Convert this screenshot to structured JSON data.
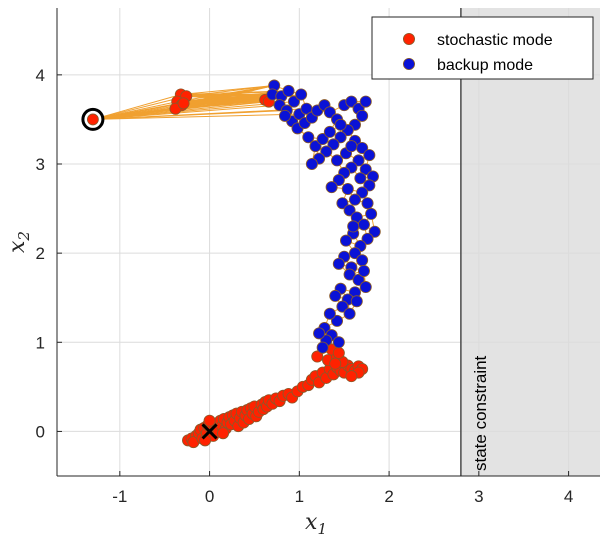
{
  "chart_data": {
    "type": "scatter",
    "title": "",
    "xlabel": "x",
    "xlabel_sub": "1",
    "ylabel": "x",
    "ylabel_sub": "2",
    "xlim": [
      -1.7,
      4.35
    ],
    "ylim": [
      -0.5,
      4.75
    ],
    "xticks": [
      -1,
      0,
      1,
      2,
      3,
      4
    ],
    "yticks": [
      0,
      1,
      2,
      3,
      4
    ],
    "grid": true,
    "legend_position": "top-right",
    "start_point": [
      -1.3,
      3.5
    ],
    "target_point": [
      0,
      0
    ],
    "state_constraint": {
      "x": 2.8,
      "label": "state constraint",
      "fill": "#e3e3e3"
    },
    "series": [
      {
        "name": "stochastic mode",
        "color": "#ff2200",
        "edge": "#8a5a2a",
        "points": [
          [
            -0.32,
            3.78
          ],
          [
            -0.26,
            3.76
          ],
          [
            -0.36,
            3.7
          ],
          [
            -0.31,
            3.66
          ],
          [
            -0.38,
            3.62
          ],
          [
            -0.29,
            3.68
          ],
          [
            0.62,
            3.72
          ],
          [
            0.66,
            3.7
          ],
          [
            -0.24,
            -0.1
          ],
          [
            -0.2,
            -0.08
          ],
          [
            -0.15,
            -0.05
          ],
          [
            -0.18,
            -0.12
          ],
          [
            -0.12,
            -0.02
          ],
          [
            -0.1,
            0.02
          ],
          [
            -0.08,
            -0.08
          ],
          [
            -0.06,
            0.04
          ],
          [
            -0.03,
            -0.02
          ],
          [
            -0.02,
            0.07
          ],
          [
            0.02,
            0.02
          ],
          [
            0.04,
            -0.05
          ],
          [
            0.06,
            0.06
          ],
          [
            0.08,
            0.09
          ],
          [
            0.1,
            0.0
          ],
          [
            0.12,
            0.12
          ],
          [
            0.14,
            0.06
          ],
          [
            0.16,
            0.14
          ],
          [
            0.18,
            0.03
          ],
          [
            0.2,
            0.1
          ],
          [
            0.22,
            0.16
          ],
          [
            0.24,
            0.08
          ],
          [
            0.26,
            0.18
          ],
          [
            0.28,
            0.12
          ],
          [
            0.3,
            0.2
          ],
          [
            0.32,
            0.06
          ],
          [
            0.34,
            0.15
          ],
          [
            0.36,
            0.22
          ],
          [
            0.38,
            0.1
          ],
          [
            0.4,
            0.18
          ],
          [
            0.42,
            0.24
          ],
          [
            0.44,
            0.14
          ],
          [
            0.46,
            0.26
          ],
          [
            0.48,
            0.2
          ],
          [
            0.5,
            0.28
          ],
          [
            0.52,
            0.17
          ],
          [
            0.55,
            0.22
          ],
          [
            0.58,
            0.3
          ],
          [
            0.6,
            0.25
          ],
          [
            0.62,
            0.33
          ],
          [
            0.64,
            0.28
          ],
          [
            0.66,
            0.35
          ],
          [
            0.7,
            0.31
          ],
          [
            0.74,
            0.37
          ],
          [
            0.78,
            0.34
          ],
          [
            0.82,
            0.4
          ],
          [
            0.88,
            0.42
          ],
          [
            0.92,
            0.38
          ],
          [
            0.98,
            0.45
          ],
          [
            1.04,
            0.5
          ],
          [
            1.1,
            0.52
          ],
          [
            1.14,
            0.58
          ],
          [
            1.18,
            0.62
          ],
          [
            1.22,
            0.55
          ],
          [
            1.26,
            0.66
          ],
          [
            1.3,
            0.6
          ],
          [
            1.34,
            0.7
          ],
          [
            1.38,
            0.64
          ],
          [
            1.42,
            0.72
          ],
          [
            1.46,
            0.68
          ],
          [
            1.5,
            0.66
          ],
          [
            1.54,
            0.74
          ],
          [
            1.58,
            0.7
          ],
          [
            1.62,
            0.68
          ],
          [
            1.66,
            0.73
          ],
          [
            1.7,
            0.7
          ],
          [
            1.32,
            0.8
          ],
          [
            1.42,
            0.84
          ],
          [
            1.48,
            0.78
          ],
          [
            1.2,
            0.84
          ],
          [
            1.36,
            0.92
          ],
          [
            1.44,
            0.88
          ],
          [
            1.66,
            0.66
          ],
          [
            1.58,
            0.62
          ],
          [
            1.4,
            0.76
          ],
          [
            -0.05,
            -0.1
          ],
          [
            0.0,
            0.12
          ],
          [
            0.15,
            -0.02
          ]
        ]
      },
      {
        "name": "backup mode",
        "color": "#0a12d6",
        "edge": "#8a5a2a",
        "points": [
          [
            0.72,
            3.88
          ],
          [
            0.7,
            3.78
          ],
          [
            0.8,
            3.76
          ],
          [
            0.88,
            3.82
          ],
          [
            0.78,
            3.66
          ],
          [
            0.86,
            3.6
          ],
          [
            0.94,
            3.7
          ],
          [
            1.02,
            3.78
          ],
          [
            0.92,
            3.48
          ],
          [
            1.0,
            3.56
          ],
          [
            1.08,
            3.62
          ],
          [
            0.98,
            3.4
          ],
          [
            1.06,
            3.46
          ],
          [
            1.14,
            3.52
          ],
          [
            1.2,
            3.6
          ],
          [
            1.28,
            3.66
          ],
          [
            1.34,
            3.58
          ],
          [
            1.42,
            3.5
          ],
          [
            1.5,
            3.66
          ],
          [
            1.58,
            3.7
          ],
          [
            1.66,
            3.62
          ],
          [
            1.74,
            3.7
          ],
          [
            1.7,
            3.54
          ],
          [
            1.62,
            3.44
          ],
          [
            1.54,
            3.38
          ],
          [
            1.46,
            3.3
          ],
          [
            1.38,
            3.22
          ],
          [
            1.3,
            3.14
          ],
          [
            1.22,
            3.06
          ],
          [
            1.14,
            3.0
          ],
          [
            1.1,
            3.3
          ],
          [
            1.18,
            3.2
          ],
          [
            1.26,
            3.28
          ],
          [
            1.34,
            3.36
          ],
          [
            1.62,
            3.26
          ],
          [
            1.7,
            3.18
          ],
          [
            1.78,
            3.1
          ],
          [
            1.66,
            3.04
          ],
          [
            1.58,
            2.96
          ],
          [
            1.5,
            2.9
          ],
          [
            1.44,
            2.82
          ],
          [
            1.36,
            2.74
          ],
          [
            1.52,
            3.12
          ],
          [
            1.42,
            3.04
          ],
          [
            1.74,
            2.94
          ],
          [
            1.82,
            2.86
          ],
          [
            1.78,
            2.76
          ],
          [
            1.7,
            2.68
          ],
          [
            1.62,
            2.6
          ],
          [
            1.54,
            2.72
          ],
          [
            1.48,
            2.56
          ],
          [
            1.56,
            2.48
          ],
          [
            1.64,
            2.4
          ],
          [
            1.72,
            2.32
          ],
          [
            1.8,
            2.44
          ],
          [
            1.84,
            2.24
          ],
          [
            1.76,
            2.16
          ],
          [
            1.68,
            2.08
          ],
          [
            1.6,
            2.22
          ],
          [
            1.52,
            2.14
          ],
          [
            1.62,
            2.0
          ],
          [
            1.7,
            1.92
          ],
          [
            1.58,
            1.84
          ],
          [
            1.5,
            1.96
          ],
          [
            1.44,
            1.88
          ],
          [
            1.56,
            1.76
          ],
          [
            1.66,
            1.7
          ],
          [
            1.74,
            1.62
          ],
          [
            1.62,
            1.56
          ],
          [
            1.54,
            1.48
          ],
          [
            1.46,
            1.6
          ],
          [
            1.4,
            1.52
          ],
          [
            1.48,
            1.4
          ],
          [
            1.56,
            1.32
          ],
          [
            1.42,
            1.24
          ],
          [
            1.34,
            1.32
          ],
          [
            1.28,
            1.16
          ],
          [
            1.36,
            1.08
          ],
          [
            1.44,
            1.0
          ],
          [
            1.3,
            1.02
          ],
          [
            1.22,
            1.1
          ],
          [
            1.26,
            0.94
          ],
          [
            1.64,
            1.46
          ],
          [
            1.72,
            1.8
          ],
          [
            1.6,
            2.3
          ],
          [
            1.76,
            2.56
          ],
          [
            1.68,
            2.84
          ],
          [
            1.58,
            3.2
          ],
          [
            1.46,
            3.44
          ],
          [
            0.84,
            3.54
          ]
        ]
      }
    ]
  }
}
